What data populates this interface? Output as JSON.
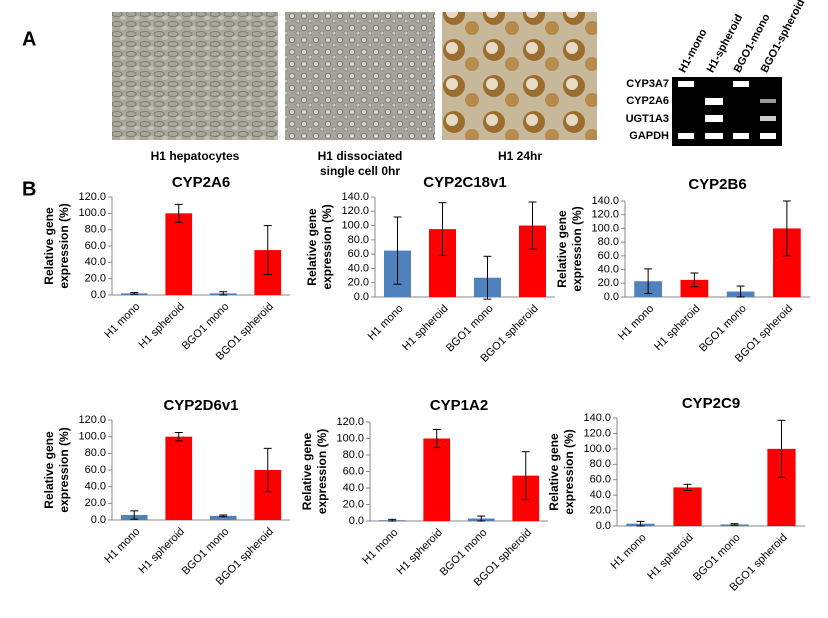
{
  "panels": {
    "a": "A",
    "b": "B"
  },
  "images": [
    {
      "caption": [
        "H1 hepatocytes"
      ]
    },
    {
      "caption": [
        "H1 dissociated",
        "single cell 0hr"
      ]
    },
    {
      "caption": [
        "H1 24hr"
      ]
    }
  ],
  "gel": {
    "lanes": [
      "H1-mono",
      "H1-spheroid",
      "BGO1-mono",
      "BGO1-spheroid"
    ],
    "genes": [
      "CYP3A7",
      "CYP2A6",
      "UGT1A3",
      "GAPDH"
    ]
  },
  "chart_data": [
    {
      "type": "bar",
      "title": "CYP2A6",
      "y_label": [
        "Relative gene",
        "expression (%)"
      ],
      "categories": [
        "H1 mono",
        "H1 spheroid",
        "BGO1 mono",
        "BGO1 spheroid"
      ],
      "values": [
        2,
        100,
        2,
        55
      ],
      "errors": [
        1,
        11,
        2,
        30
      ],
      "colors": [
        "#4f81bd",
        "#ff0000",
        "#4f81bd",
        "#ff0000"
      ],
      "ylim": [
        0,
        120
      ],
      "yticks": [
        {
          "value": 0,
          "label": "0.0"
        },
        {
          "value": 20,
          "label": "20.0"
        },
        {
          "value": 40,
          "label": "40.0"
        },
        {
          "value": 60,
          "label": "60.0"
        },
        {
          "value": 80,
          "label": "80.0"
        },
        {
          "value": 100,
          "label": "100.0"
        },
        {
          "value": 120,
          "label": "120.0"
        }
      ]
    },
    {
      "type": "bar",
      "title": "CYP2C18v1",
      "y_label": [
        "Relative gene",
        "expression (%)"
      ],
      "categories": [
        "H1 mono",
        "H1 spheroid",
        "BGO1 mono",
        "BGO1 spheroid"
      ],
      "values": [
        65,
        95,
        27,
        100
      ],
      "errors": [
        47,
        37,
        30,
        33
      ],
      "colors": [
        "#4f81bd",
        "#ff0000",
        "#4f81bd",
        "#ff0000"
      ],
      "ylim": [
        0,
        140
      ],
      "yticks": [
        {
          "value": 0,
          "label": "0.0"
        },
        {
          "value": 20,
          "label": "20.0"
        },
        {
          "value": 40,
          "label": "40.0"
        },
        {
          "value": 60,
          "label": "60.0"
        },
        {
          "value": 80,
          "label": "80.0"
        },
        {
          "value": 100,
          "label": "100.0"
        },
        {
          "value": 120,
          "label": "120.0"
        },
        {
          "value": 140,
          "label": "140.0"
        }
      ]
    },
    {
      "type": "bar",
      "title": "CYP2B6",
      "y_label": [
        "Relative gene",
        "expression (%)"
      ],
      "categories": [
        "H1 mono",
        "H1 spheroid",
        "BGO1 mono",
        "BGO1 spheroid"
      ],
      "values": [
        23,
        25,
        8,
        100
      ],
      "errors": [
        18,
        10,
        8,
        40
      ],
      "colors": [
        "#4f81bd",
        "#ff0000",
        "#4f81bd",
        "#ff0000"
      ],
      "ylim": [
        0,
        140
      ],
      "yticks": [
        {
          "value": 0,
          "label": "0.0"
        },
        {
          "value": 20,
          "label": "20.0"
        },
        {
          "value": 40,
          "label": "40.0"
        },
        {
          "value": 60,
          "label": "60.0"
        },
        {
          "value": 80,
          "label": "80.0"
        },
        {
          "value": 100,
          "label": "100.0"
        },
        {
          "value": 120,
          "label": "120.0"
        },
        {
          "value": 140,
          "label": "140.0"
        }
      ]
    },
    {
      "type": "bar",
      "title": "CYP2D6v1",
      "y_label": [
        "Relative gene",
        "expression (%)"
      ],
      "categories": [
        "H1 mono",
        "H1 spheroid",
        "BGO1 mono",
        "BGO1 spheroid"
      ],
      "values": [
        6,
        100,
        5,
        60
      ],
      "errors": [
        5,
        5,
        1,
        26
      ],
      "colors": [
        "#4f81bd",
        "#ff0000",
        "#4f81bd",
        "#ff0000"
      ],
      "ylim": [
        0,
        120
      ],
      "yticks": [
        {
          "value": 0,
          "label": "0.0"
        },
        {
          "value": 20,
          "label": "20.0"
        },
        {
          "value": 40,
          "label": "40.0"
        },
        {
          "value": 60,
          "label": "60.0"
        },
        {
          "value": 80,
          "label": "80.0"
        },
        {
          "value": 100,
          "label": "100.0"
        },
        {
          "value": 120,
          "label": "120.0"
        }
      ]
    },
    {
      "type": "bar",
      "title": "CYP1A2",
      "y_label": [
        "Relative gene",
        "expression (%)"
      ],
      "categories": [
        "H1 mono",
        "H1 spheroid",
        "BGO1 mono",
        "BGO1 spheroid"
      ],
      "values": [
        1,
        100,
        3,
        55
      ],
      "errors": [
        1,
        11,
        3,
        29
      ],
      "colors": [
        "#4f81bd",
        "#ff0000",
        "#4f81bd",
        "#ff0000"
      ],
      "ylim": [
        0,
        120
      ],
      "yticks": [
        {
          "value": 0,
          "label": "0.0"
        },
        {
          "value": 20,
          "label": "20.0"
        },
        {
          "value": 40,
          "label": "40.0"
        },
        {
          "value": 60,
          "label": "60.0"
        },
        {
          "value": 80,
          "label": "80.0"
        },
        {
          "value": 100,
          "label": "100.0"
        },
        {
          "value": 120,
          "label": "120.0"
        }
      ]
    },
    {
      "type": "bar",
      "title": "CYP2C9",
      "y_label": [
        "Relative gene",
        "expression (%)"
      ],
      "categories": [
        "H1 mono",
        "H1 spheroid",
        "BGO1 mono",
        "BGO1 spheroid"
      ],
      "values": [
        3,
        50,
        2,
        100
      ],
      "errors": [
        3,
        4,
        1,
        37
      ],
      "colors": [
        "#4f81bd",
        "#ff0000",
        "#4f81bd",
        "#ff0000"
      ],
      "ylim": [
        0,
        140
      ],
      "yticks": [
        {
          "value": 0,
          "label": "0.0"
        },
        {
          "value": 20,
          "label": "20.0"
        },
        {
          "value": 40,
          "label": "40.0"
        },
        {
          "value": 60,
          "label": "60.0"
        },
        {
          "value": 80,
          "label": "80.0"
        },
        {
          "value": 100,
          "label": "100.0"
        },
        {
          "value": 120,
          "label": "120.0"
        },
        {
          "value": 140,
          "label": "140.0"
        }
      ]
    }
  ]
}
